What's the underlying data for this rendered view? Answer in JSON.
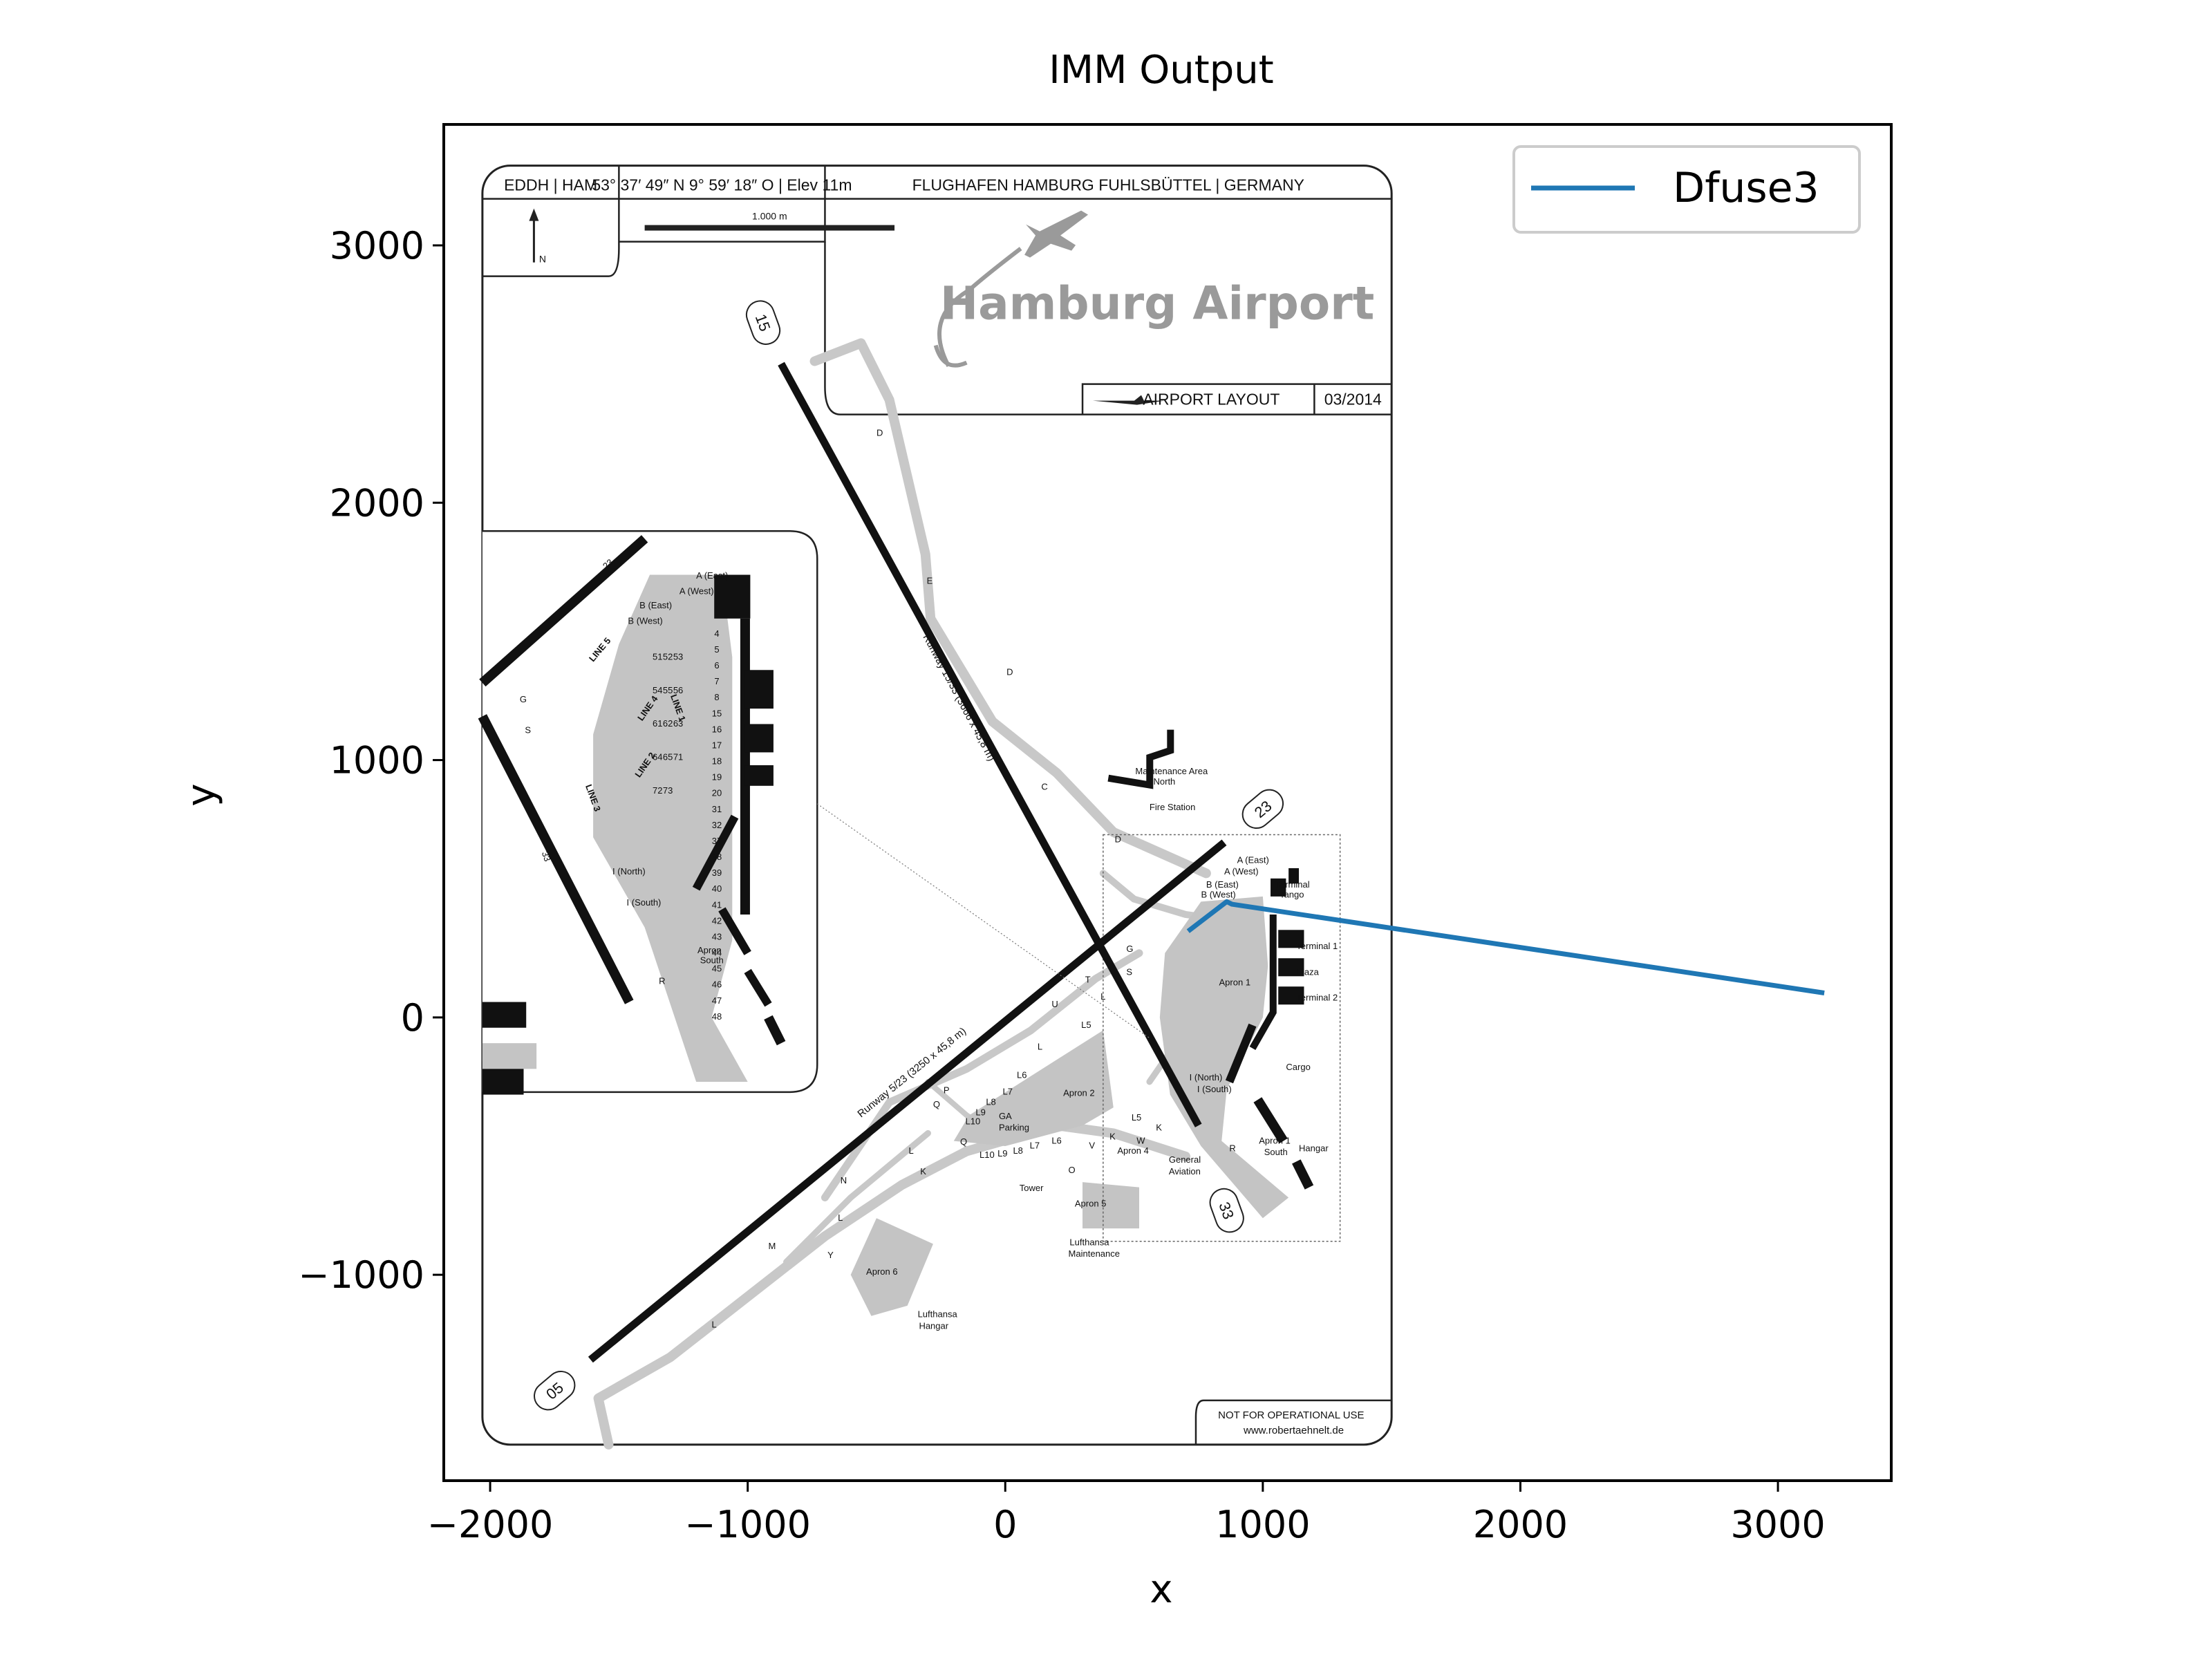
{
  "chart_data": {
    "type": "line",
    "title": "IMM Output",
    "xlabel": "x",
    "ylabel": "y",
    "xlim": [
      -2180,
      3440
    ],
    "ylim": [
      -1800,
      3470
    ],
    "xticks": [
      -2000,
      -1000,
      0,
      1000,
      2000,
      3000
    ],
    "yticks": [
      -1000,
      0,
      1000,
      2000,
      3000
    ],
    "xtick_labels": [
      "−2000",
      "−1000",
      "0",
      "1000",
      "2000",
      "3000"
    ],
    "ytick_labels": [
      "−1000",
      "0",
      "1000",
      "2000",
      "3000"
    ],
    "grid": false,
    "legend": {
      "placement": "top-right"
    },
    "series": [
      {
        "name": "Dfuse3",
        "color": "#1f77b4",
        "x": [
          710,
          860,
          880,
          3180
        ],
        "y": [
          335,
          450,
          440,
          95
        ]
      }
    ],
    "background_image": {
      "extent_x": [
        -2030,
        1500
      ],
      "extent_y": [
        -1660,
        3310
      ],
      "header": {
        "code": "EDDH  |  HAM",
        "coords": "53° 37′ 49″ N   9° 59′ 18″ O  |  Elev 11m",
        "name": "FLUGHAFEN HAMBURG FUHLSBÜTTEL  |  GERMANY",
        "scale": "1.000 m",
        "north": "N"
      },
      "logo_text": "Hamburg Airport",
      "layout_label": "AIRPORT LAYOUT",
      "layout_date": "03/2014",
      "footer": "NOT FOR OPERATIONAL USE",
      "footer_url": "www.robertaehnelt.de",
      "runway_labels": [
        "15",
        "33",
        "23",
        "05"
      ],
      "runway_text_1": "Runway 15/33 (3666 x 45,8 m)",
      "runway_text_2": "Runway 5/23 (3250 x 45,8 m)",
      "area_labels": [
        {
          "text": "Maintenance Area",
          "x": 505,
          "y": 945
        },
        {
          "text": "North",
          "x": 575,
          "y": 905
        },
        {
          "text": "Fire Station",
          "x": 560,
          "y": 805
        },
        {
          "text": "A (East)",
          "x": 900,
          "y": 600
        },
        {
          "text": "A (West)",
          "x": 850,
          "y": 555
        },
        {
          "text": "B (East)",
          "x": 780,
          "y": 505
        },
        {
          "text": "B (West)",
          "x": 760,
          "y": 465
        },
        {
          "text": "Terminal",
          "x": 1050,
          "y": 505
        },
        {
          "text": "Tango",
          "x": 1065,
          "y": 465
        },
        {
          "text": "Terminal 1",
          "x": 1130,
          "y": 265
        },
        {
          "text": "Plaza",
          "x": 1130,
          "y": 165
        },
        {
          "text": "Terminal 2",
          "x": 1130,
          "y": 65
        },
        {
          "text": "Apron 1",
          "x": 830,
          "y": 125
        },
        {
          "text": "I (North)",
          "x": 715,
          "y": -245
        },
        {
          "text": "I (South)",
          "x": 745,
          "y": -290
        },
        {
          "text": "Cargo",
          "x": 1090,
          "y": -205
        },
        {
          "text": "Apron 1",
          "x": 985,
          "y": -490
        },
        {
          "text": "South",
          "x": 1005,
          "y": -535
        },
        {
          "text": "Hangar",
          "x": 1140,
          "y": -520
        },
        {
          "text": "Apron 2",
          "x": 225,
          "y": -305
        },
        {
          "text": "GA",
          "x": -25,
          "y": -395
        },
        {
          "text": "Parking",
          "x": -25,
          "y": -440
        },
        {
          "text": "Apron 4",
          "x": 435,
          "y": -530
        },
        {
          "text": "General",
          "x": 635,
          "y": -565
        },
        {
          "text": "Aviation",
          "x": 635,
          "y": -610
        },
        {
          "text": "Tower",
          "x": 55,
          "y": -675
        },
        {
          "text": "Apron 5",
          "x": 270,
          "y": -735
        },
        {
          "text": "Lufthansa",
          "x": 250,
          "y": -885
        },
        {
          "text": "Maintenance",
          "x": 245,
          "y": -930
        },
        {
          "text": "Apron 6",
          "x": -540,
          "y": -1000
        },
        {
          "text": "Lufthansa",
          "x": -340,
          "y": -1165
        },
        {
          "text": "Hangar",
          "x": -335,
          "y": -1210
        },
        {
          "text": "Apron",
          "x": -1195,
          "y": 250
        },
        {
          "text": "South",
          "x": -1185,
          "y": 210
        },
        {
          "text": "A (East)",
          "x": -1200,
          "y": 1705
        },
        {
          "text": "A (West)",
          "x": -1265,
          "y": 1645
        },
        {
          "text": "B (East)",
          "x": -1420,
          "y": 1590
        },
        {
          "text": "B (West)",
          "x": -1465,
          "y": 1530
        },
        {
          "text": "I (North)",
          "x": -1525,
          "y": 555
        },
        {
          "text": "I (South)",
          "x": -1470,
          "y": 435
        },
        {
          "text": "D",
          "x": -500,
          "y": 2260
        },
        {
          "text": "E",
          "x": -305,
          "y": 1685
        },
        {
          "text": "D",
          "x": 5,
          "y": 1330
        },
        {
          "text": "C",
          "x": 140,
          "y": 885
        },
        {
          "text": "D",
          "x": 425,
          "y": 680
        },
        {
          "text": "G",
          "x": 470,
          "y": 255
        },
        {
          "text": "S",
          "x": 470,
          "y": 165
        },
        {
          "text": "T",
          "x": 310,
          "y": 135
        },
        {
          "text": "L",
          "x": 370,
          "y": 70
        },
        {
          "text": "U",
          "x": 180,
          "y": 40
        },
        {
          "text": "L5",
          "x": 295,
          "y": -40
        },
        {
          "text": "L",
          "x": 125,
          "y": -125
        },
        {
          "text": "L6",
          "x": 45,
          "y": -235
        },
        {
          "text": "L7",
          "x": -10,
          "y": -300
        },
        {
          "text": "L8",
          "x": -75,
          "y": -340
        },
        {
          "text": "L9",
          "x": -115,
          "y": -380
        },
        {
          "text": "L10",
          "x": -155,
          "y": -415
        },
        {
          "text": "P",
          "x": -240,
          "y": -295
        },
        {
          "text": "Q",
          "x": -280,
          "y": -350
        },
        {
          "text": "L",
          "x": -375,
          "y": -530
        },
        {
          "text": "Q",
          "x": -175,
          "y": -495
        },
        {
          "text": "L10",
          "x": -100,
          "y": -545
        },
        {
          "text": "L9",
          "x": -30,
          "y": -540
        },
        {
          "text": "L8",
          "x": 30,
          "y": -530
        },
        {
          "text": "L7",
          "x": 95,
          "y": -510
        },
        {
          "text": "L6",
          "x": 180,
          "y": -490
        },
        {
          "text": "L5",
          "x": 490,
          "y": -400
        },
        {
          "text": "K",
          "x": 585,
          "y": -440
        },
        {
          "text": "K",
          "x": 405,
          "y": -475
        },
        {
          "text": "W",
          "x": 510,
          "y": -490
        },
        {
          "text": "V",
          "x": 325,
          "y": -510
        },
        {
          "text": "O",
          "x": 245,
          "y": -605
        },
        {
          "text": "R",
          "x": 870,
          "y": -520
        },
        {
          "text": "K",
          "x": -330,
          "y": -610
        },
        {
          "text": "N",
          "x": -640,
          "y": -645
        },
        {
          "text": "L",
          "x": -650,
          "y": -790
        },
        {
          "text": "M",
          "x": -920,
          "y": -900
        },
        {
          "text": "Y",
          "x": -690,
          "y": -935
        },
        {
          "text": "L",
          "x": -1140,
          "y": -1205
        },
        {
          "text": "R",
          "x": -1345,
          "y": 130
        },
        {
          "text": "G",
          "x": -1885,
          "y": 1225
        },
        {
          "text": "S",
          "x": -1865,
          "y": 1105
        }
      ],
      "inset_stands": [
        "4",
        "5",
        "6",
        "7",
        "8",
        "15",
        "16",
        "17",
        "18",
        "19",
        "20",
        "31",
        "32",
        "37",
        "38",
        "39",
        "40",
        "41",
        "42",
        "43",
        "44",
        "45",
        "46",
        "47",
        "48",
        "51",
        "52",
        "53",
        "54",
        "55",
        "56",
        "61",
        "62",
        "63",
        "64",
        "65",
        "71",
        "72",
        "73"
      ],
      "inset_lines": [
        "LINE 1",
        "LINE 2",
        "LINE 3",
        "LINE 4",
        "LINE 5"
      ]
    }
  }
}
